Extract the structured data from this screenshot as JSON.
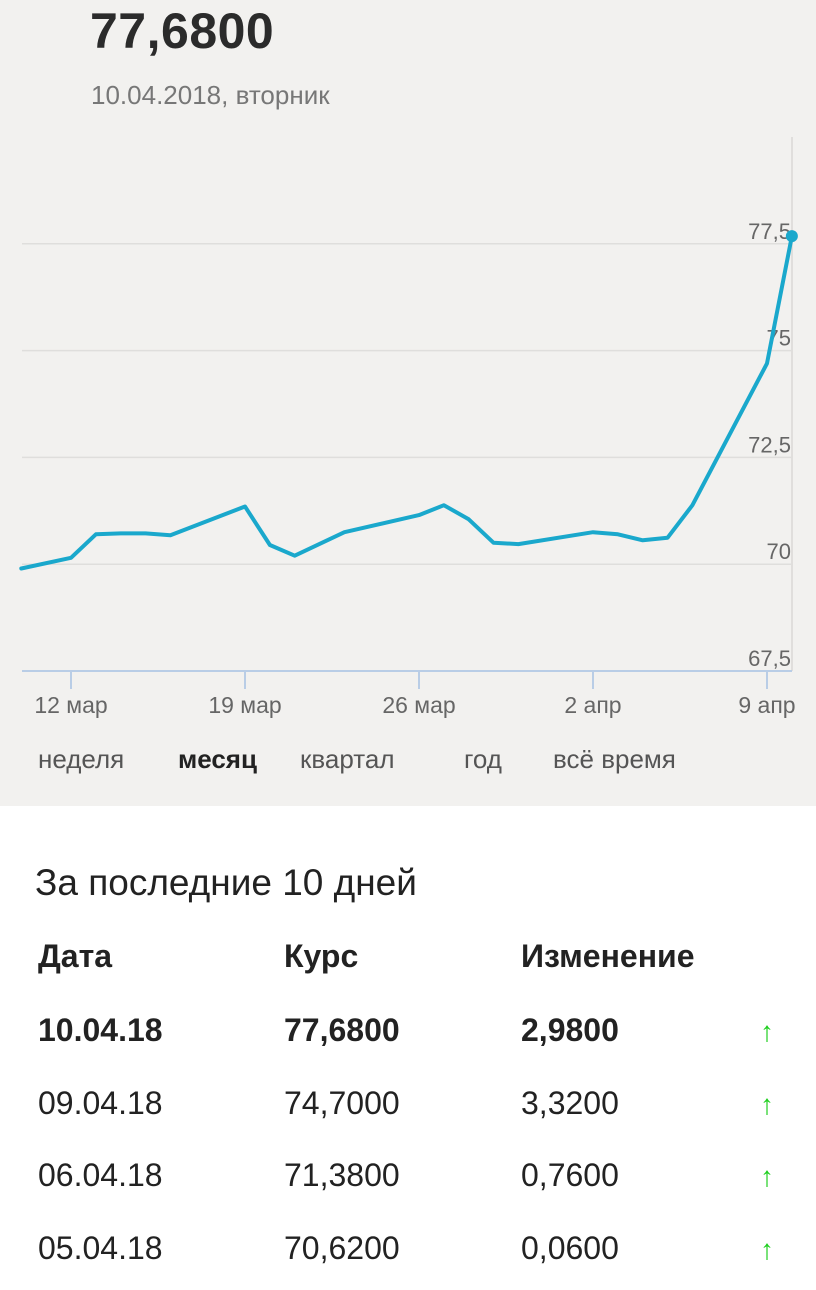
{
  "header": {
    "rate": "77,6800",
    "date": "10.04.2018, вторник"
  },
  "periods": [
    {
      "label": "неделя",
      "active": false
    },
    {
      "label": "месяц",
      "active": true
    },
    {
      "label": "квартал",
      "active": false
    },
    {
      "label": "год",
      "active": false
    },
    {
      "label": "всё время",
      "active": false
    }
  ],
  "chart_data": {
    "type": "line",
    "y_ticks": [
      "67,5",
      "70",
      "72,5",
      "75",
      "77,5"
    ],
    "y_tick_values": [
      67.5,
      70,
      72.5,
      75,
      77.5
    ],
    "x_ticks": [
      "12 мар",
      "19 мар",
      "26 мар",
      "2 апр",
      "9 апр"
    ],
    "x_tick_dates": [
      "2018-03-12",
      "2018-03-19",
      "2018-03-26",
      "2018-04-02",
      "2018-04-09"
    ],
    "ylim": [
      67.5,
      80
    ],
    "grid": true,
    "series": [
      {
        "color": "#1aa8cc",
        "points": [
          [
            "2018-03-10",
            69.9
          ],
          [
            "2018-03-12",
            70.15
          ],
          [
            "2018-03-13",
            70.7
          ],
          [
            "2018-03-14",
            70.72
          ],
          [
            "2018-03-15",
            70.72
          ],
          [
            "2018-03-16",
            70.68
          ],
          [
            "2018-03-19",
            71.35
          ],
          [
            "2018-03-20",
            70.45
          ],
          [
            "2018-03-21",
            70.2
          ],
          [
            "2018-03-23",
            70.75
          ],
          [
            "2018-03-26",
            71.15
          ],
          [
            "2018-03-27",
            71.38
          ],
          [
            "2018-03-28",
            71.05
          ],
          [
            "2018-03-29",
            70.5
          ],
          [
            "2018-03-30",
            70.47
          ],
          [
            "2018-04-02",
            70.75
          ],
          [
            "2018-04-03",
            70.7
          ],
          [
            "2018-04-04",
            70.56
          ],
          [
            "2018-04-05",
            70.62
          ],
          [
            "2018-04-06",
            71.38
          ],
          [
            "2018-04-09",
            74.7
          ],
          [
            "2018-04-10",
            77.68
          ]
        ]
      }
    ]
  },
  "table": {
    "title": "За последние 10 дней",
    "headers": {
      "date": "Дата",
      "rate": "Курс",
      "change": "Изменение"
    },
    "rows": [
      {
        "date": "10.04.18",
        "rate": "77,6800",
        "change": "2,9800",
        "arrow": "↑"
      },
      {
        "date": "09.04.18",
        "rate": "74,7000",
        "change": "3,3200",
        "arrow": "↑"
      },
      {
        "date": "06.04.18",
        "rate": "71,3800",
        "change": "0,7600",
        "arrow": "↑"
      },
      {
        "date": "05.04.18",
        "rate": "70,6200",
        "change": "0,0600",
        "arrow": "↑"
      }
    ]
  }
}
